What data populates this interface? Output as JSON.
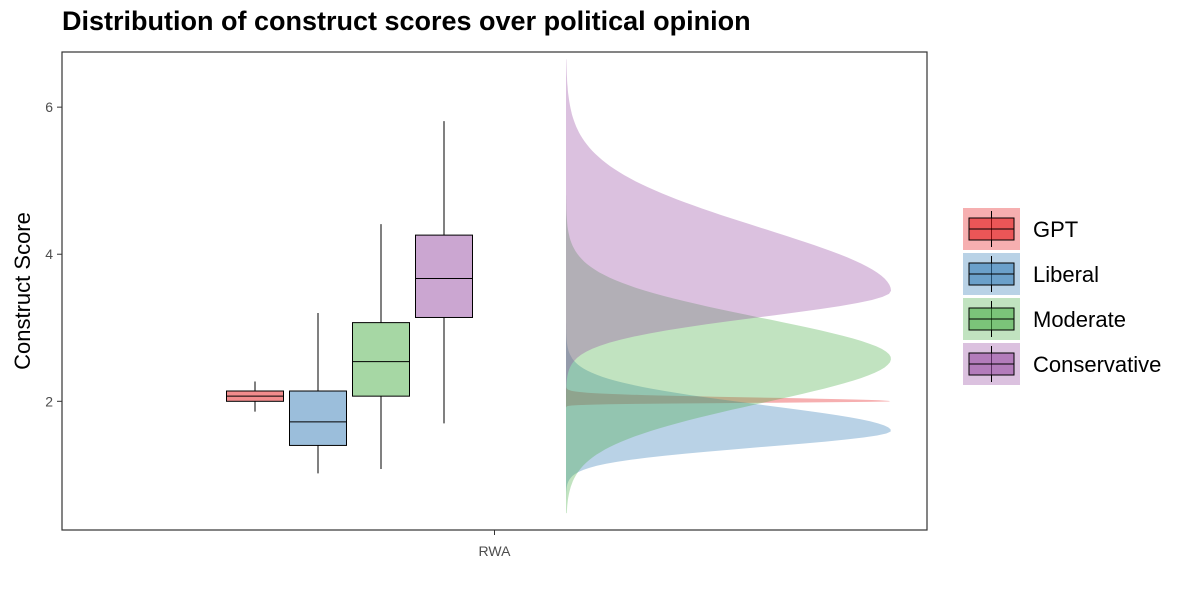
{
  "chart_data": {
    "type": "raincloud",
    "title": "Distribution of construct scores over political opinion",
    "xlabel": "",
    "ylabel": "Construct Score",
    "categories": [
      "RWA"
    ],
    "ylim": [
      0.25,
      6.75
    ],
    "yticks": [
      2,
      4,
      6
    ],
    "grid": false,
    "legend_position": "right",
    "series": [
      {
        "name": "GPT",
        "color": "#E41A1C",
        "box": {
          "min": 1.86,
          "q1": 2.0,
          "median": 2.07,
          "q3": 2.14,
          "max": 2.27
        },
        "density": {
          "from": 1.9,
          "to": 2.55,
          "peak": 2.0,
          "sigma_lo": 0.02,
          "sigma_hi": 0.05,
          "amp": 1.0
        }
      },
      {
        "name": "Liberal",
        "color": "#377EB8",
        "box": {
          "min": 1.02,
          "q1": 1.4,
          "median": 1.72,
          "q3": 2.14,
          "max": 3.2
        },
        "density": {
          "from": 0.6,
          "to": 3.9,
          "peak": 1.6,
          "sigma_lo": 0.22,
          "sigma_hi": 0.35,
          "amp": 1.0
        }
      },
      {
        "name": "Moderate",
        "color": "#4DAF4A",
        "box": {
          "min": 1.08,
          "q1": 2.07,
          "median": 2.54,
          "q3": 3.07,
          "max": 4.41
        },
        "density": {
          "from": 0.48,
          "to": 4.8,
          "peak": 2.58,
          "sigma_lo": 0.6,
          "sigma_hi": 0.55,
          "amp": 1.0
        }
      },
      {
        "name": "Conservative",
        "color": "#984EA3",
        "box": {
          "min": 1.7,
          "q1": 3.14,
          "median": 3.67,
          "q3": 4.26,
          "max": 5.81
        },
        "density": {
          "from": 1.68,
          "to": 6.65,
          "peak": 3.5,
          "sigma_lo": 0.35,
          "sigma_hi": 0.85,
          "amp": 1.0
        }
      }
    ]
  }
}
